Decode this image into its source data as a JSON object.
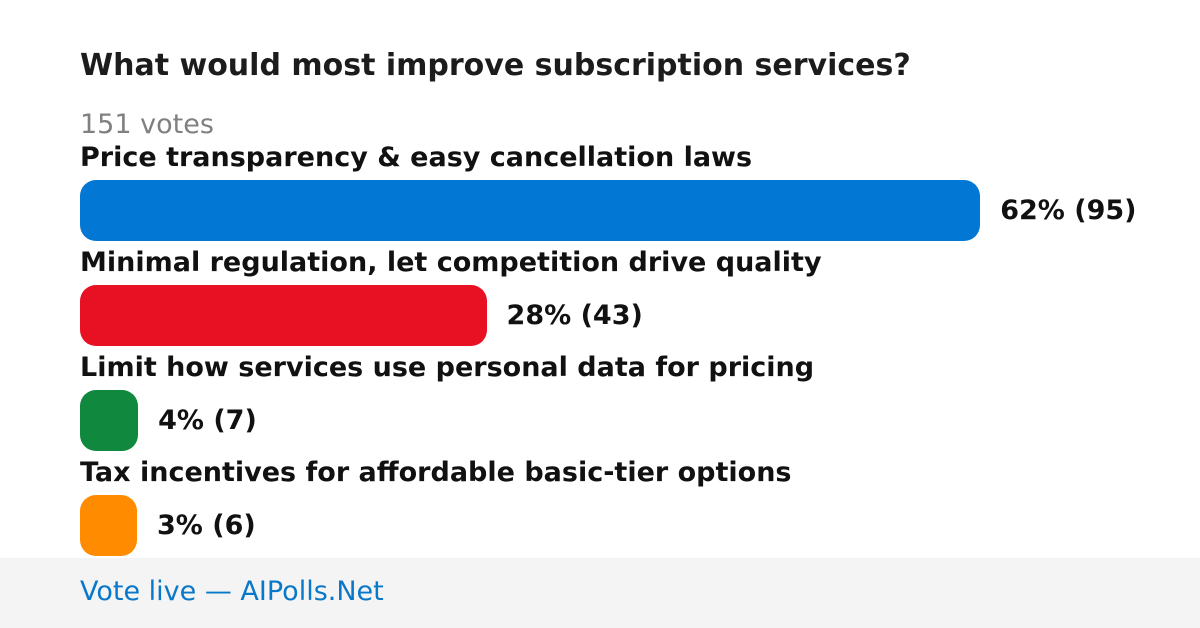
{
  "chart_data": {
    "type": "bar",
    "orientation": "horizontal",
    "title": "What would most improve subscription services?",
    "subtitle": "151 votes",
    "categories": [
      "Price transparency & easy cancellation laws",
      "Minimal regulation, let competition drive quality",
      "Limit how services use personal data for pricing",
      "Tax incentives for affordable basic-tier options"
    ],
    "values": [
      62,
      28,
      4,
      3
    ],
    "counts": [
      95,
      43,
      7,
      6
    ],
    "value_labels": [
      "62% (95)",
      "28% (43)",
      "4% (7)",
      "3% (6)"
    ],
    "colors": [
      "#0277d4",
      "#e81123",
      "#10893e",
      "#ff8c00"
    ],
    "xlim": [
      0,
      100
    ]
  },
  "footer": {
    "link_text": "Vote live — AIPolls.Net"
  }
}
